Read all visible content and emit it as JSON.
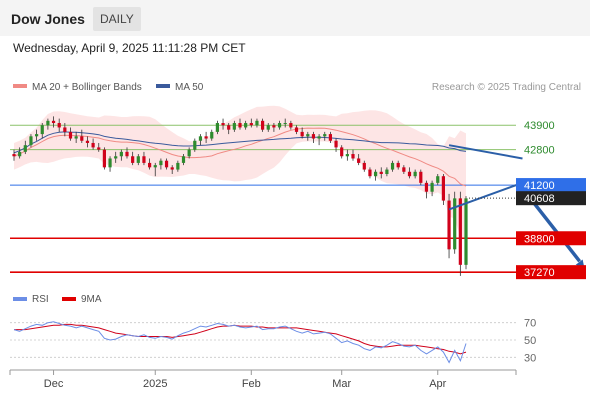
{
  "header": {
    "title": "Dow Jones",
    "period": "DAILY",
    "datetime": "Wednesday, April 9, 2025 11:11:28 PM CET"
  },
  "legend": {
    "ma20": "MA 20 + Bollinger Bands",
    "ma50": "MA 50",
    "rsi": "RSI",
    "ma9": "9MA",
    "credit": "Research © 2025 Trading Central"
  },
  "colors": {
    "bull": "#2e8b2e",
    "bear": "#d0021b",
    "ma20": "#f08a84",
    "ma50": "#3a5a9c",
    "bands": "#fcdcdc",
    "support": "#e00000",
    "resistance": "#8cc26a",
    "pivot": "#2f6fe8",
    "rsi": "#6c8ee6",
    "arrow": "#2b5fa8"
  },
  "chart_data": {
    "type": "candlestick",
    "x_labels": [
      "Dec",
      "2025",
      "Feb",
      "Mar",
      "Apr"
    ],
    "ylim": [
      36600,
      45400
    ],
    "last_price": 40608,
    "levels": [
      {
        "value": 43900,
        "label": "43900",
        "kind": "resistance"
      },
      {
        "value": 42800,
        "label": "42800",
        "kind": "resistance"
      },
      {
        "value": 41200,
        "label": "41200",
        "kind": "pivot"
      },
      {
        "value": 38800,
        "label": "38800",
        "kind": "support"
      },
      {
        "value": 37270,
        "label": "37270",
        "kind": "support"
      }
    ],
    "trendlines": [
      {
        "from": [
          77,
          43000
        ],
        "to": [
          90,
          42400
        ]
      },
      {
        "from": [
          77,
          40100
        ],
        "to": [
          90,
          41300
        ]
      }
    ],
    "projection": {
      "from": [
        92,
        40400
      ],
      "to": [
        101,
        37400
      ]
    },
    "candles": [
      [
        42600,
        42800,
        42300,
        42500
      ],
      [
        42500,
        42900,
        42400,
        42700
      ],
      [
        42700,
        43200,
        42600,
        43000
      ],
      [
        43000,
        43500,
        42900,
        43400
      ],
      [
        43400,
        43700,
        43200,
        43500
      ],
      [
        43500,
        44000,
        43300,
        43900
      ],
      [
        43900,
        44200,
        43700,
        44100
      ],
      [
        44100,
        44300,
        43800,
        44000
      ],
      [
        44000,
        44200,
        43600,
        43800
      ],
      [
        43800,
        44000,
        43400,
        43600
      ],
      [
        43600,
        43800,
        43200,
        43300
      ],
      [
        43300,
        43600,
        43100,
        43400
      ],
      [
        43400,
        43700,
        43100,
        43200
      ],
      [
        43200,
        43400,
        42900,
        43100
      ],
      [
        43100,
        43300,
        42800,
        42900
      ],
      [
        42900,
        43100,
        42700,
        42800
      ],
      [
        42800,
        42900,
        41900,
        42000
      ],
      [
        42000,
        42500,
        41800,
        42400
      ],
      [
        42400,
        42700,
        42200,
        42500
      ],
      [
        42500,
        42800,
        42300,
        42700
      ],
      [
        42700,
        42900,
        42400,
        42500
      ],
      [
        42500,
        42700,
        42100,
        42200
      ],
      [
        42200,
        42600,
        42100,
        42500
      ],
      [
        42500,
        42700,
        42100,
        42200
      ],
      [
        42200,
        42400,
        41900,
        42000
      ],
      [
        42000,
        42200,
        41600,
        42100
      ],
      [
        42100,
        42400,
        41900,
        42300
      ],
      [
        42300,
        42400,
        41900,
        42000
      ],
      [
        42000,
        42100,
        41700,
        41900
      ],
      [
        41900,
        42300,
        41800,
        42200
      ],
      [
        42200,
        42600,
        42100,
        42500
      ],
      [
        42500,
        42900,
        42400,
        42800
      ],
      [
        42800,
        43300,
        42700,
        43200
      ],
      [
        43200,
        43500,
        43000,
        43400
      ],
      [
        43400,
        43600,
        43100,
        43300
      ],
      [
        43300,
        43700,
        43200,
        43600
      ],
      [
        43600,
        44100,
        43500,
        44000
      ],
      [
        44000,
        44200,
        43700,
        43900
      ],
      [
        43900,
        44000,
        43500,
        43700
      ],
      [
        43700,
        44100,
        43600,
        44000
      ],
      [
        44000,
        44200,
        43700,
        43800
      ],
      [
        43800,
        44100,
        43700,
        44000
      ],
      [
        44000,
        44200,
        43800,
        43900
      ],
      [
        43900,
        44200,
        43800,
        44100
      ],
      [
        44100,
        44200,
        43600,
        43700
      ],
      [
        43700,
        44000,
        43600,
        43900
      ],
      [
        43900,
        44000,
        43600,
        43800
      ],
      [
        43800,
        44100,
        43700,
        44000
      ],
      [
        44000,
        44200,
        43800,
        44000
      ],
      [
        44000,
        44100,
        43700,
        43800
      ],
      [
        43800,
        43900,
        43500,
        43600
      ],
      [
        43600,
        43800,
        43300,
        43400
      ],
      [
        43400,
        43600,
        43200,
        43500
      ],
      [
        43500,
        43600,
        43100,
        43300
      ],
      [
        43300,
        43500,
        43000,
        43400
      ],
      [
        43400,
        43600,
        43200,
        43500
      ],
      [
        43500,
        43600,
        43100,
        43200
      ],
      [
        43200,
        43300,
        42700,
        42900
      ],
      [
        42900,
        43000,
        42400,
        42500
      ],
      [
        42500,
        42800,
        42300,
        42600
      ],
      [
        42600,
        42800,
        42300,
        42400
      ],
      [
        42400,
        42600,
        42100,
        42200
      ],
      [
        42200,
        42300,
        41800,
        41900
      ],
      [
        41900,
        42000,
        41500,
        41600
      ],
      [
        41600,
        41900,
        41400,
        41800
      ],
      [
        41800,
        42000,
        41500,
        41700
      ],
      [
        41700,
        42000,
        41600,
        41900
      ],
      [
        41900,
        42300,
        41800,
        42200
      ],
      [
        42200,
        42300,
        41900,
        42000
      ],
      [
        42000,
        42100,
        41700,
        41800
      ],
      [
        41800,
        42000,
        41500,
        41600
      ],
      [
        41600,
        41900,
        41500,
        41800
      ],
      [
        41800,
        41900,
        41200,
        41300
      ],
      [
        41300,
        41400,
        40600,
        40900
      ],
      [
        40900,
        41400,
        40700,
        41300
      ],
      [
        41300,
        41700,
        41200,
        41600
      ],
      [
        41600,
        41700,
        40300,
        40500
      ],
      [
        40500,
        40800,
        37900,
        38300
      ],
      [
        38300,
        40900,
        38100,
        40600
      ],
      [
        40600,
        40900,
        37100,
        37600
      ],
      [
        37600,
        40700,
        37400,
        40600
      ]
    ],
    "rsi": {
      "levels": [
        70,
        50,
        30
      ],
      "ylim": [
        20,
        80
      ],
      "values": [
        62,
        60,
        63,
        66,
        68,
        67,
        70,
        71,
        69,
        67,
        66,
        64,
        66,
        64,
        62,
        60,
        52,
        50,
        51,
        54,
        56,
        55,
        54,
        56,
        53,
        52,
        54,
        53,
        51,
        55,
        58,
        60,
        63,
        66,
        65,
        67,
        69,
        68,
        66,
        67,
        65,
        64,
        65,
        66,
        62,
        63,
        63,
        65,
        66,
        63,
        60,
        58,
        60,
        57,
        58,
        59,
        57,
        52,
        47,
        49,
        46,
        44,
        40,
        38,
        42,
        41,
        44,
        48,
        46,
        43,
        42,
        44,
        38,
        34,
        38,
        42,
        36,
        24,
        38,
        26,
        46
      ],
      "ma9": [
        62,
        62,
        62,
        63,
        64,
        65,
        66,
        67,
        67,
        68,
        68,
        67,
        67,
        66,
        65,
        64,
        62,
        60,
        58,
        57,
        56,
        55,
        54,
        54,
        54,
        54,
        54,
        54,
        53,
        54,
        55,
        56,
        57,
        59,
        61,
        63,
        65,
        66,
        66,
        67,
        66,
        66,
        66,
        65,
        65,
        64,
        64,
        64,
        64,
        64,
        64,
        63,
        62,
        61,
        60,
        59,
        58,
        57,
        55,
        53,
        51,
        49,
        46,
        44,
        43,
        42,
        42,
        43,
        44,
        44,
        44,
        44,
        43,
        42,
        41,
        40,
        39,
        37,
        36,
        34,
        36
      ]
    }
  }
}
